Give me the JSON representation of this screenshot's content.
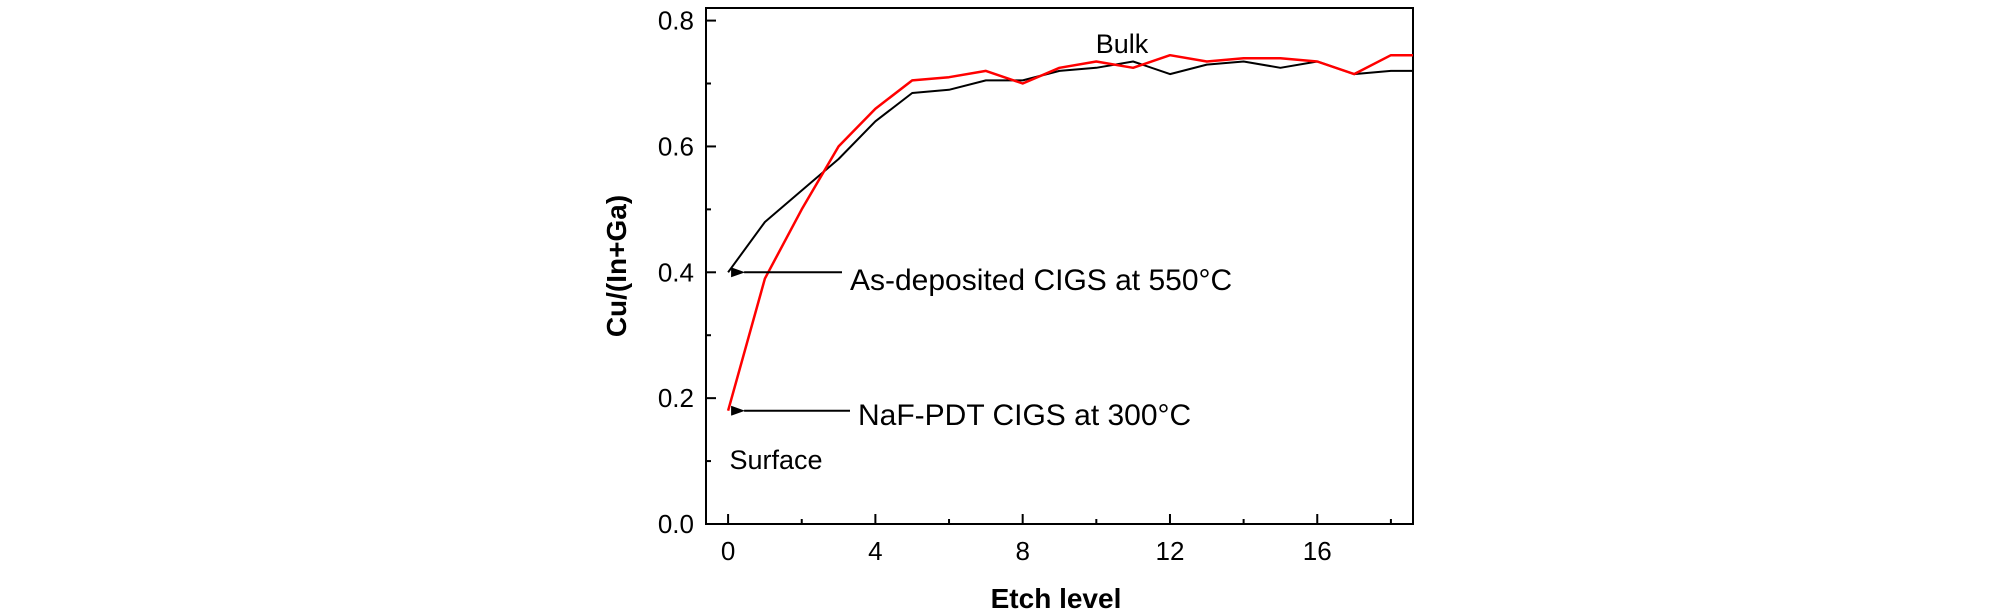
{
  "chart_data": {
    "type": "line",
    "title": "",
    "xlabel": "Etch level",
    "ylabel": "Cu/(In+Ga)",
    "xlim": [
      -0.6,
      18.6
    ],
    "ylim": [
      0.0,
      0.82
    ],
    "xticks": [
      0,
      4,
      8,
      12,
      16
    ],
    "yticks": [
      0.0,
      0.2,
      0.4,
      0.6,
      0.8
    ],
    "xtick_labels": [
      "0",
      "4",
      "8",
      "12",
      "16"
    ],
    "ytick_labels": [
      "0.0",
      "0.2",
      "0.4",
      "0.6",
      "0.8"
    ],
    "grid": false,
    "legend": "none",
    "series": [
      {
        "color": "#000000",
        "x": [
          0,
          1,
          2,
          3,
          4,
          5,
          6,
          7,
          8,
          9,
          10,
          11,
          12,
          13,
          14,
          15,
          16,
          17,
          18,
          18.6
        ],
        "y": [
          0.4,
          0.48,
          0.53,
          0.58,
          0.64,
          0.685,
          0.69,
          0.705,
          0.705,
          0.72,
          0.725,
          0.735,
          0.715,
          0.73,
          0.735,
          0.725,
          0.735,
          0.715,
          0.72,
          0.72
        ]
      },
      {
        "color": "#ff0000",
        "x": [
          0,
          1,
          2,
          3,
          4,
          5,
          6,
          7,
          8,
          9,
          10,
          11,
          12,
          13,
          14,
          15,
          16,
          17,
          18,
          18.6
        ],
        "y": [
          0.18,
          0.39,
          0.5,
          0.6,
          0.66,
          0.705,
          0.71,
          0.72,
          0.7,
          0.725,
          0.735,
          0.725,
          0.745,
          0.735,
          0.74,
          0.74,
          0.735,
          0.715,
          0.745,
          0.745
        ]
      }
    ],
    "annotations": {
      "bulk": "Bulk",
      "surface": "Surface",
      "black_label": "As-deposited CIGS at 550°C",
      "red_label": "NaF-PDT CIGS at 300°C"
    },
    "annotation_points": {
      "black_label_target": [
        0,
        0.4
      ],
      "red_label_target": [
        0,
        0.18
      ]
    }
  }
}
